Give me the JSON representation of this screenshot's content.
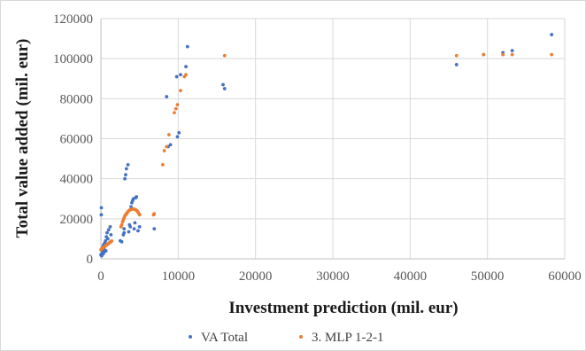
{
  "chart_data": {
    "type": "scatter",
    "title": "",
    "xlabel": "Investment prediction (mil. eur)",
    "ylabel": "Total value added (mil. eur)",
    "xlim": [
      0,
      60000
    ],
    "ylim": [
      0,
      120000
    ],
    "x_ticks": [
      0,
      10000,
      20000,
      30000,
      40000,
      50000,
      60000
    ],
    "y_ticks": [
      0,
      20000,
      40000,
      60000,
      80000,
      100000,
      120000
    ],
    "x_tick_labels": [
      "0",
      "10000",
      "20000",
      "30000",
      "40000",
      "50000",
      "60000"
    ],
    "y_tick_labels": [
      "0",
      "20000",
      "40000",
      "60000",
      "80000",
      "100000",
      "120000"
    ],
    "grid": true,
    "legend_position": "bottom",
    "series": [
      {
        "name": "VA Total",
        "color": "#4472c4",
        "marker": "dot",
        "points": [
          [
            0,
            2000
          ],
          [
            50,
            22000
          ],
          [
            60,
            25500
          ],
          [
            100,
            1500
          ],
          [
            150,
            3000
          ],
          [
            200,
            4500
          ],
          [
            250,
            6000
          ],
          [
            300,
            2500
          ],
          [
            350,
            7000
          ],
          [
            400,
            5000
          ],
          [
            450,
            3500
          ],
          [
            500,
            8000
          ],
          [
            550,
            6500
          ],
          [
            600,
            9000
          ],
          [
            650,
            4000
          ],
          [
            700,
            11000
          ],
          [
            800,
            13000
          ],
          [
            900,
            10000
          ],
          [
            1000,
            14500
          ],
          [
            1200,
            16000
          ],
          [
            1300,
            12000
          ],
          [
            2500,
            9000
          ],
          [
            2700,
            8500
          ],
          [
            2900,
            12000
          ],
          [
            3000,
            13000
          ],
          [
            3000,
            15000
          ],
          [
            3100,
            40000
          ],
          [
            3200,
            42000
          ],
          [
            3300,
            45000
          ],
          [
            3500,
            47000
          ],
          [
            3600,
            13500
          ],
          [
            3700,
            17000
          ],
          [
            3800,
            16000
          ],
          [
            3900,
            26000
          ],
          [
            4000,
            28000
          ],
          [
            4100,
            29000
          ],
          [
            4200,
            30000
          ],
          [
            4300,
            15000
          ],
          [
            4400,
            18000
          ],
          [
            4500,
            30500
          ],
          [
            4600,
            31000
          ],
          [
            4800,
            14000
          ],
          [
            5000,
            16000
          ],
          [
            6900,
            15000
          ],
          [
            8500,
            81000
          ],
          [
            8700,
            56000
          ],
          [
            9000,
            57000
          ],
          [
            9800,
            91000
          ],
          [
            9900,
            61000
          ],
          [
            10100,
            63000
          ],
          [
            10300,
            92000
          ],
          [
            11000,
            96000
          ],
          [
            11200,
            106000
          ],
          [
            15800,
            87000
          ],
          [
            16000,
            85000
          ],
          [
            46000,
            97000
          ],
          [
            49500,
            102000
          ],
          [
            52000,
            103000
          ],
          [
            53200,
            104000
          ],
          [
            58300,
            112000
          ]
        ]
      },
      {
        "name": "3. MLP 1-2-1",
        "color": "#ed7d31",
        "marker": "dot",
        "points": [
          [
            0,
            4500
          ],
          [
            100,
            5000
          ],
          [
            200,
            5300
          ],
          [
            300,
            5600
          ],
          [
            400,
            5900
          ],
          [
            500,
            6200
          ],
          [
            600,
            6500
          ],
          [
            700,
            6800
          ],
          [
            800,
            7100
          ],
          [
            900,
            7400
          ],
          [
            1000,
            7700
          ],
          [
            1100,
            8000
          ],
          [
            1200,
            8300
          ],
          [
            1300,
            8600
          ],
          [
            1400,
            8900
          ],
          [
            2600,
            16000
          ],
          [
            2700,
            17000
          ],
          [
            2800,
            18500
          ],
          [
            2900,
            19500
          ],
          [
            3000,
            20500
          ],
          [
            3100,
            21500
          ],
          [
            3200,
            22000
          ],
          [
            3300,
            22500
          ],
          [
            3400,
            23000
          ],
          [
            3500,
            23500
          ],
          [
            3600,
            24000
          ],
          [
            3700,
            24300
          ],
          [
            3800,
            24500
          ],
          [
            3900,
            24700
          ],
          [
            4000,
            24800
          ],
          [
            4100,
            24900
          ],
          [
            4200,
            24900
          ],
          [
            4300,
            24800
          ],
          [
            4400,
            24700
          ],
          [
            4500,
            24500
          ],
          [
            4600,
            24200
          ],
          [
            4700,
            23800
          ],
          [
            4800,
            23300
          ],
          [
            4900,
            22700
          ],
          [
            5000,
            22000
          ],
          [
            6800,
            22000
          ],
          [
            6900,
            22500
          ],
          [
            8000,
            47000
          ],
          [
            8200,
            54000
          ],
          [
            8500,
            56000
          ],
          [
            8800,
            62000
          ],
          [
            9500,
            73000
          ],
          [
            9700,
            75000
          ],
          [
            9900,
            77000
          ],
          [
            10300,
            84000
          ],
          [
            10800,
            91000
          ],
          [
            11000,
            92000
          ],
          [
            16000,
            101500
          ],
          [
            46000,
            101500
          ],
          [
            49500,
            102000
          ],
          [
            52000,
            102000
          ],
          [
            53200,
            102000
          ],
          [
            58300,
            102000
          ]
        ]
      }
    ]
  }
}
